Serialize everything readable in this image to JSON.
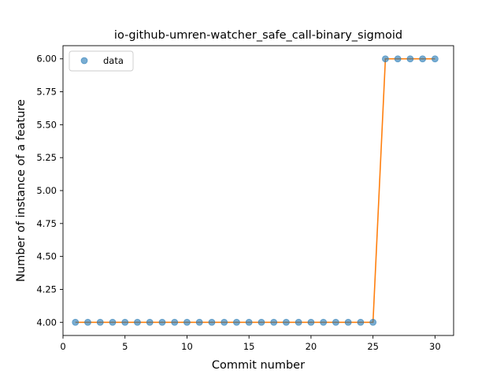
{
  "chart_data": {
    "type": "line",
    "title": "io-github-umren-watcher_safe_call-binary_sigmoid",
    "xlabel": "Commit number",
    "ylabel": "Number of instance of a feature",
    "xlim": [
      0,
      31.5
    ],
    "ylim": [
      3.9,
      6.1
    ],
    "xticks": [
      0,
      5,
      10,
      15,
      20,
      25,
      30
    ],
    "yticks": [
      4.0,
      4.25,
      4.5,
      4.75,
      5.0,
      5.25,
      5.5,
      5.75,
      6.0
    ],
    "grid": false,
    "legend": {
      "placement": "top-left",
      "entries": [
        "data"
      ]
    },
    "x": [
      1,
      2,
      3,
      4,
      5,
      6,
      7,
      8,
      9,
      10,
      11,
      12,
      13,
      14,
      15,
      16,
      17,
      18,
      19,
      20,
      21,
      22,
      23,
      24,
      25,
      26,
      27,
      28,
      29,
      30
    ],
    "series": [
      {
        "name": "data",
        "style": "markers",
        "color": "#1f77b4",
        "values": [
          4,
          4,
          4,
          4,
          4,
          4,
          4,
          4,
          4,
          4,
          4,
          4,
          4,
          4,
          4,
          4,
          4,
          4,
          4,
          4,
          4,
          4,
          4,
          4,
          4,
          6,
          6,
          6,
          6,
          6
        ]
      },
      {
        "style": "line",
        "color": "#ff7f0e",
        "values": [
          4,
          4,
          4,
          4,
          4,
          4,
          4,
          4,
          4,
          4,
          4,
          4,
          4,
          4,
          4,
          4,
          4,
          4,
          4,
          4,
          4,
          4,
          4,
          4,
          4,
          6,
          6,
          6,
          6,
          6
        ]
      }
    ]
  }
}
